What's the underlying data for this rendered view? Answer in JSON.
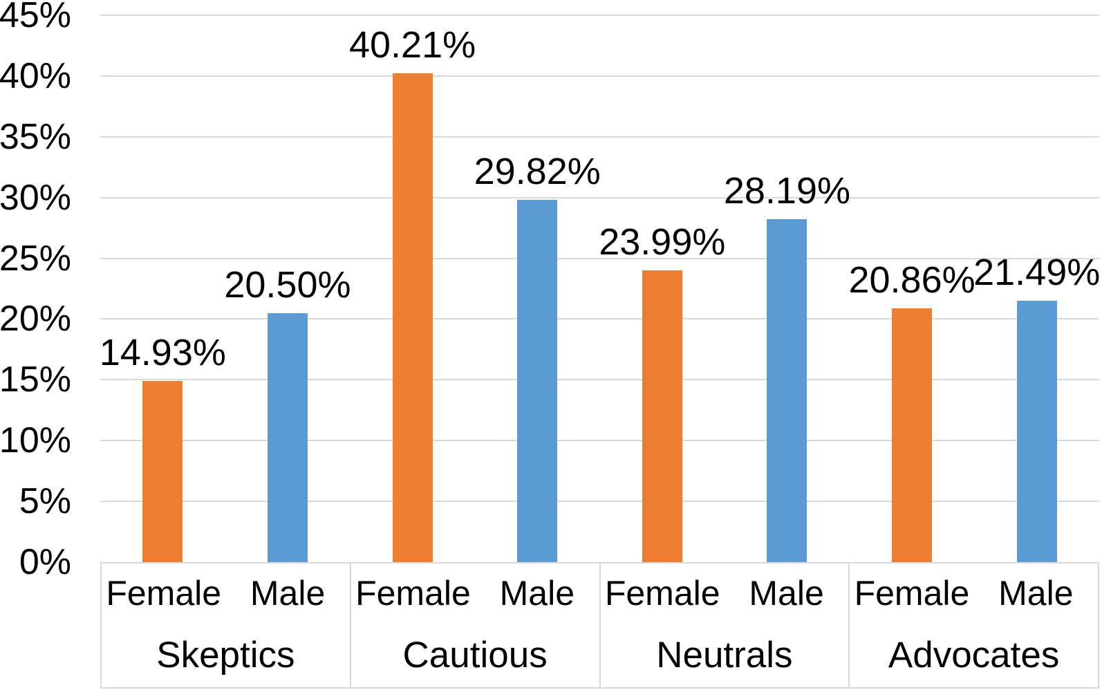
{
  "chart_data": {
    "type": "bar",
    "title": "",
    "xlabel": "",
    "ylabel": "",
    "ylim": [
      0,
      45
    ],
    "y_tick_step": 5,
    "grid": true,
    "legend_position": "none",
    "axis_style": "two-level category axis: sex labels (Female/Male) under each bar, group labels beneath, groups separated by divider lines",
    "y_ticks": [
      {
        "value": 0,
        "label": "0%"
      },
      {
        "value": 5,
        "label": "5%"
      },
      {
        "value": 10,
        "label": "10%"
      },
      {
        "value": 15,
        "label": "15%"
      },
      {
        "value": 20,
        "label": "20%"
      },
      {
        "value": 25,
        "label": "25%"
      },
      {
        "value": 30,
        "label": "30%"
      },
      {
        "value": 35,
        "label": "35%"
      },
      {
        "value": 40,
        "label": "40%"
      },
      {
        "value": 45,
        "label": "45%"
      }
    ],
    "categories": [
      "Skeptics",
      "Cautious",
      "Neutrals",
      "Advocates"
    ],
    "series": [
      {
        "name": "Female",
        "color": "#ED7D31",
        "values": [
          14.93,
          40.21,
          23.99,
          20.86
        ],
        "labels": [
          "14.93%",
          "40.21%",
          "23.99%",
          "20.86%"
        ]
      },
      {
        "name": "Male",
        "color": "#5B9BD5",
        "values": [
          20.5,
          29.82,
          28.19,
          21.49
        ],
        "labels": [
          "20.50%",
          "29.82%",
          "28.19%",
          "21.49%"
        ]
      }
    ],
    "groups": [
      {
        "name": "Skeptics",
        "bars": [
          {
            "sex": "Female",
            "value": 14.93,
            "label": "14.93%"
          },
          {
            "sex": "Male",
            "value": 20.5,
            "label": "20.50%"
          }
        ]
      },
      {
        "name": "Cautious",
        "bars": [
          {
            "sex": "Female",
            "value": 40.21,
            "label": "40.21%"
          },
          {
            "sex": "Male",
            "value": 29.82,
            "label": "29.82%"
          }
        ]
      },
      {
        "name": "Neutrals",
        "bars": [
          {
            "sex": "Female",
            "value": 23.99,
            "label": "23.99%"
          },
          {
            "sex": "Male",
            "value": 28.19,
            "label": "28.19%"
          }
        ]
      },
      {
        "name": "Advocates",
        "bars": [
          {
            "sex": "Female",
            "value": 20.86,
            "label": "20.86%"
          },
          {
            "sex": "Male",
            "value": 21.49,
            "label": "21.49%"
          }
        ]
      }
    ],
    "colors": {
      "Female": "#ED7D31",
      "Male": "#5B9BD5",
      "gridline": "#D9D9D9",
      "axis_box_border": "#D9D9D9",
      "text": "#000000",
      "background": "#FFFFFF"
    }
  }
}
